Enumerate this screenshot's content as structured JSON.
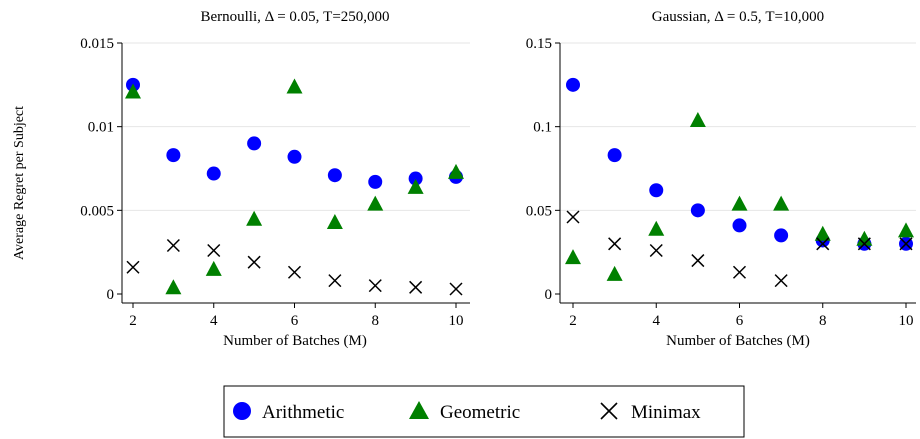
{
  "figure": {
    "ylabel": "Average Regret per Subject"
  },
  "colors": {
    "arithmetic": "#0000ff",
    "geometric": "#008000",
    "minimax": "#000000",
    "grid": "#e6e6e6",
    "axis": "#000000"
  },
  "legend": {
    "placement": "bottom-center",
    "items": [
      {
        "label": "Arithmetic",
        "marker": "circle",
        "color": "#0000ff"
      },
      {
        "label": "Geometric",
        "marker": "triangle",
        "color": "#008000"
      },
      {
        "label": "Minimax",
        "marker": "x",
        "color": "#000000"
      }
    ]
  },
  "chart_data": [
    {
      "type": "scatter",
      "title": "Bernoulli, Δ = 0.05, T=250,000",
      "xlabel": "Number of Batches (M)",
      "ylabel": "Average Regret per Subject",
      "xlim": [
        2,
        10
      ],
      "ylim": [
        0,
        0.015
      ],
      "xticks": [
        2,
        4,
        6,
        8,
        10
      ],
      "xtick_labels": [
        "2",
        "4",
        "6",
        "8",
        "10"
      ],
      "yticks": [
        0,
        0.005,
        0.01,
        0.015
      ],
      "ytick_labels": [
        "0",
        "0.005",
        "0.01",
        "0.015"
      ],
      "grid": "horizontal",
      "series": [
        {
          "name": "Arithmetic",
          "marker": "circle",
          "x": [
            2,
            3,
            4,
            5,
            6,
            7,
            8,
            9,
            10
          ],
          "values": [
            0.0125,
            0.0083,
            0.0072,
            0.009,
            0.0082,
            0.0071,
            0.0067,
            0.0069,
            0.007
          ]
        },
        {
          "name": "Geometric",
          "marker": "triangle",
          "x": [
            2,
            3,
            4,
            5,
            6,
            7,
            8,
            9,
            10
          ],
          "values": [
            0.0121,
            0.0004,
            0.0015,
            0.0045,
            0.0124,
            0.0043,
            0.0054,
            0.0064,
            0.0073
          ]
        },
        {
          "name": "Minimax",
          "marker": "x",
          "x": [
            2,
            3,
            4,
            5,
            6,
            7,
            8,
            9,
            10
          ],
          "values": [
            0.0016,
            0.0029,
            0.0026,
            0.0019,
            0.0013,
            0.0008,
            0.0005,
            0.0004,
            0.0003
          ]
        }
      ]
    },
    {
      "type": "scatter",
      "title": "Gaussian, Δ = 0.5, T=10,000",
      "xlabel": "Number of Batches (M)",
      "ylabel": "Average Regret per Subject",
      "xlim": [
        2,
        10
      ],
      "ylim": [
        0,
        0.15
      ],
      "xticks": [
        2,
        4,
        6,
        8,
        10
      ],
      "xtick_labels": [
        "2",
        "4",
        "6",
        "8",
        "10"
      ],
      "yticks": [
        0,
        0.05,
        0.1,
        0.15
      ],
      "ytick_labels": [
        "0",
        "0.05",
        "0.1",
        "0.15"
      ],
      "grid": "horizontal",
      "series": [
        {
          "name": "Arithmetic",
          "marker": "circle",
          "x": [
            2,
            3,
            4,
            5,
            6,
            7,
            8,
            9,
            10
          ],
          "values": [
            0.125,
            0.083,
            0.062,
            0.05,
            0.041,
            0.035,
            0.032,
            0.03,
            0.03
          ]
        },
        {
          "name": "Geometric",
          "marker": "triangle",
          "x": [
            2,
            3,
            4,
            5,
            6,
            7,
            8,
            9,
            10
          ],
          "values": [
            0.022,
            0.012,
            0.039,
            0.104,
            0.054,
            0.054,
            0.036,
            0.033,
            0.038
          ]
        },
        {
          "name": "Minimax",
          "marker": "x",
          "x": [
            2,
            3,
            4,
            5,
            6,
            7,
            8,
            9,
            10
          ],
          "values": [
            0.046,
            0.03,
            0.026,
            0.02,
            0.013,
            0.008,
            0.03,
            0.03,
            0.03
          ]
        }
      ]
    }
  ]
}
